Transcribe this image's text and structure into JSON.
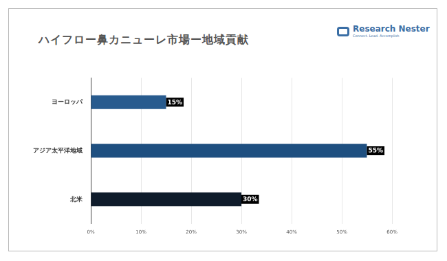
{
  "chart_data": {
    "type": "bar",
    "orientation": "horizontal",
    "title": "ハイフロー鼻カニューレ市場ー地域貢献",
    "annotations": [
      "Research Nester",
      "Connect. Lead. Accomplish"
    ],
    "categories": [
      "ヨーロッパ",
      "アジア太平洋地域",
      "北米"
    ],
    "values": [
      15,
      55,
      30
    ],
    "value_labels": [
      "15%",
      "55%",
      "30%"
    ],
    "colors": [
      "#285b8e",
      "#1e4f80",
      "#0f1c2b"
    ],
    "xlim": [
      0,
      60
    ],
    "xticks": [
      {
        "value": 0,
        "label": "0%"
      },
      {
        "value": 10,
        "label": "10%"
      },
      {
        "value": 20,
        "label": "20%"
      },
      {
        "value": 30,
        "label": "30%"
      },
      {
        "value": 40,
        "label": "40%"
      },
      {
        "value": 50,
        "label": "50%"
      },
      {
        "value": 60,
        "label": "60%"
      }
    ],
    "grid": true,
    "data_labels": true,
    "legend": null
  }
}
